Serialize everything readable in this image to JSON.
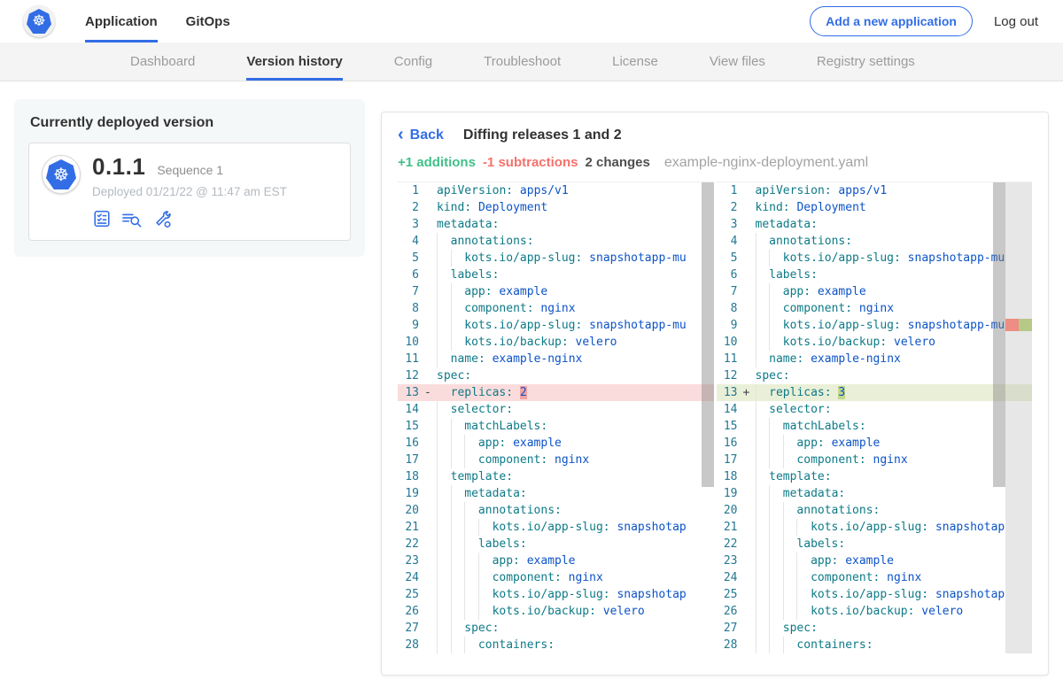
{
  "colors": {
    "accent": "#326de6",
    "green": "#41c089",
    "red": "#f6716b",
    "removed_row": "#fbdcdc",
    "removed_token": "#f2a4a4",
    "added_row": "#eaf0d8",
    "added_token": "#c3d88b"
  },
  "topnav": {
    "logo": "kubernetes-logo",
    "tabs": [
      {
        "label": "Application",
        "active": true
      },
      {
        "label": "GitOps",
        "active": false
      }
    ],
    "add_app_button": "Add a new application",
    "logout_label": "Log out"
  },
  "subnav": {
    "items": [
      {
        "label": "Dashboard",
        "active": false
      },
      {
        "label": "Version history",
        "active": true
      },
      {
        "label": "Config",
        "active": false
      },
      {
        "label": "Troubleshoot",
        "active": false
      },
      {
        "label": "License",
        "active": false
      },
      {
        "label": "View files",
        "active": false
      },
      {
        "label": "Registry settings",
        "active": false
      }
    ]
  },
  "deployed_card": {
    "title": "Currently deployed version",
    "version": "0.1.1",
    "sequence": "Sequence 1",
    "deployed_at": "Deployed 01/21/22 @ 11:47 am EST",
    "action_icons": [
      "preflight-checks-icon",
      "deploy-logs-icon",
      "edit-config-icon"
    ]
  },
  "diff": {
    "back_label": "Back",
    "back_chevron": "‹",
    "title": "Diffing releases 1 and 2",
    "additions_label": "+1 additions",
    "subtractions_label": "-1 subtractions",
    "changes_label": "2 changes",
    "filename": "example-nginx-deployment.yaml",
    "lines": [
      {
        "n": 1,
        "indent": 0,
        "key": "apiVersion",
        "value": "apps/v1"
      },
      {
        "n": 2,
        "indent": 0,
        "key": "kind",
        "value": "Deployment"
      },
      {
        "n": 3,
        "indent": 0,
        "key": "metadata",
        "value": ""
      },
      {
        "n": 4,
        "indent": 2,
        "key": "annotations",
        "value": ""
      },
      {
        "n": 5,
        "indent": 4,
        "key": "kots.io/app-slug",
        "value": "snapshotapp-mu"
      },
      {
        "n": 6,
        "indent": 2,
        "key": "labels",
        "value": ""
      },
      {
        "n": 7,
        "indent": 4,
        "key": "app",
        "value": "example"
      },
      {
        "n": 8,
        "indent": 4,
        "key": "component",
        "value": "nginx"
      },
      {
        "n": 9,
        "indent": 4,
        "key": "kots.io/app-slug",
        "value": "snapshotapp-mu"
      },
      {
        "n": 10,
        "indent": 4,
        "key": "kots.io/backup",
        "value": "velero"
      },
      {
        "n": 11,
        "indent": 2,
        "key": "name",
        "value": "example-nginx"
      },
      {
        "n": 12,
        "indent": 0,
        "key": "spec",
        "value": ""
      },
      {
        "n": 13,
        "indent": 2,
        "left": {
          "key": "replicas",
          "value": "2",
          "marker": "-",
          "change": "removed"
        },
        "right": {
          "key": "replicas",
          "value": "3",
          "marker": "+",
          "change": "added"
        }
      },
      {
        "n": 14,
        "indent": 2,
        "key": "selector",
        "value": ""
      },
      {
        "n": 15,
        "indent": 4,
        "key": "matchLabels",
        "value": ""
      },
      {
        "n": 16,
        "indent": 6,
        "key": "app",
        "value": "example"
      },
      {
        "n": 17,
        "indent": 6,
        "key": "component",
        "value": "nginx"
      },
      {
        "n": 18,
        "indent": 2,
        "key": "template",
        "value": ""
      },
      {
        "n": 19,
        "indent": 4,
        "key": "metadata",
        "value": ""
      },
      {
        "n": 20,
        "indent": 6,
        "key": "annotations",
        "value": ""
      },
      {
        "n": 21,
        "indent": 8,
        "key": "kots.io/app-slug",
        "value": "snapshotap"
      },
      {
        "n": 22,
        "indent": 6,
        "key": "labels",
        "value": ""
      },
      {
        "n": 23,
        "indent": 8,
        "key": "app",
        "value": "example"
      },
      {
        "n": 24,
        "indent": 8,
        "key": "component",
        "value": "nginx"
      },
      {
        "n": 25,
        "indent": 8,
        "key": "kots.io/app-slug",
        "value": "snapshotap"
      },
      {
        "n": 26,
        "indent": 8,
        "key": "kots.io/backup",
        "value": "velero"
      },
      {
        "n": 27,
        "indent": 4,
        "key": "spec",
        "value": ""
      },
      {
        "n": 28,
        "indent": 6,
        "key": "containers",
        "value": ""
      }
    ]
  }
}
